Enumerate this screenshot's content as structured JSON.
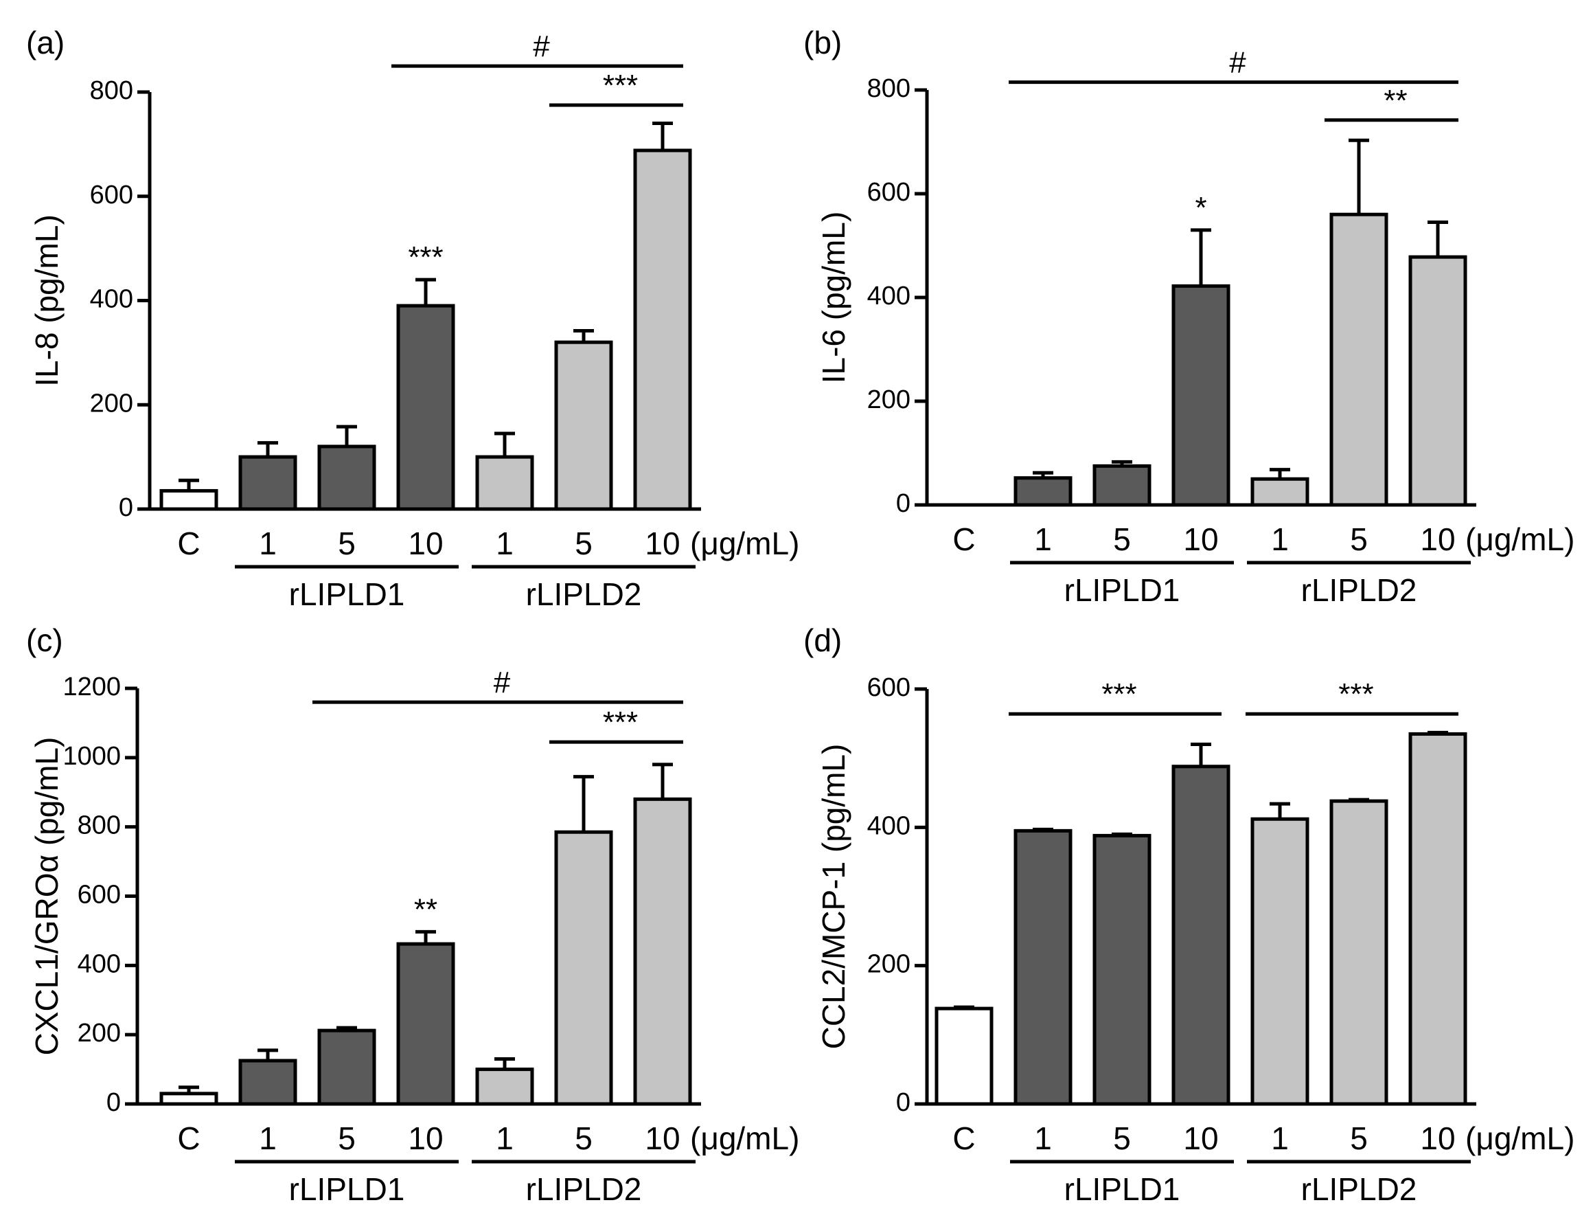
{
  "chart_data": [
    {
      "type": "bar",
      "panel_label": "(a)",
      "ylabel": "IL-8 (pg/mL)",
      "ylim": [
        0,
        800
      ],
      "yticks": [
        0,
        200,
        400,
        600,
        800
      ],
      "categories": [
        "C",
        "1",
        "5",
        "10",
        "1",
        "5",
        "10"
      ],
      "unit_label": "(μg/mL)",
      "group_labels": [
        "rLIPLD1",
        "rLIPLD2"
      ],
      "values": [
        35,
        100,
        120,
        390,
        100,
        320,
        688
      ],
      "errors": [
        20,
        27,
        38,
        50,
        45,
        22,
        52
      ],
      "fills": [
        "#ffffff",
        "#5a5a5a",
        "#5a5a5a",
        "#5a5a5a",
        "#c4c4c4",
        "#c4c4c4",
        "#c4c4c4"
      ],
      "bar_stars": [
        {
          "index": 3,
          "text": "***"
        }
      ],
      "brackets": [
        {
          "from": 3,
          "to": 6,
          "value": 850,
          "text": "#"
        },
        {
          "from": 5,
          "to": 6,
          "value": 775,
          "text": "***"
        }
      ]
    },
    {
      "type": "bar",
      "panel_label": "(b)",
      "ylabel": "IL-6 (pg/mL)",
      "ylim": [
        0,
        800
      ],
      "yticks": [
        0,
        200,
        400,
        600,
        800
      ],
      "categories": [
        "C",
        "1",
        "5",
        "10",
        "1",
        "5",
        "10"
      ],
      "unit_label": "(μg/mL)",
      "group_labels": [
        "rLIPLD1",
        "rLIPLD2"
      ],
      "values": [
        0,
        52,
        75,
        422,
        50,
        560,
        478
      ],
      "errors": [
        0,
        10,
        8,
        108,
        18,
        143,
        67
      ],
      "fills": [
        "#ffffff",
        "#5a5a5a",
        "#5a5a5a",
        "#5a5a5a",
        "#c4c4c4",
        "#c4c4c4",
        "#c4c4c4"
      ],
      "bar_stars": [
        {
          "index": 3,
          "text": "*"
        }
      ],
      "brackets": [
        {
          "from": 1,
          "to": 6,
          "value": 815,
          "text": "#"
        },
        {
          "from": 5,
          "to": 6,
          "value": 742,
          "text": "**"
        }
      ]
    },
    {
      "type": "bar",
      "panel_label": "(c)",
      "ylabel": "CXCL1/GROα (pg/mL)",
      "ylim": [
        0,
        1200
      ],
      "yticks": [
        0,
        200,
        400,
        600,
        800,
        1000,
        1200
      ],
      "categories": [
        "C",
        "1",
        "5",
        "10",
        "1",
        "5",
        "10"
      ],
      "unit_label": "(μg/mL)",
      "group_labels": [
        "rLIPLD1",
        "rLIPLD2"
      ],
      "values": [
        30,
        125,
        212,
        462,
        100,
        785,
        880
      ],
      "errors": [
        18,
        30,
        8,
        35,
        30,
        160,
        100
      ],
      "fills": [
        "#ffffff",
        "#5a5a5a",
        "#5a5a5a",
        "#5a5a5a",
        "#c4c4c4",
        "#c4c4c4",
        "#c4c4c4"
      ],
      "bar_stars": [
        {
          "index": 3,
          "text": "**"
        }
      ],
      "brackets": [
        {
          "from": 2,
          "to": 6,
          "value": 1160,
          "text": "#"
        },
        {
          "from": 5,
          "to": 6,
          "value": 1045,
          "text": "***"
        }
      ]
    },
    {
      "type": "bar",
      "panel_label": "(d)",
      "ylabel": "CCL2/MCP-1 (pg/mL)",
      "ylim": [
        0,
        600
      ],
      "yticks": [
        0,
        200,
        400,
        600
      ],
      "categories": [
        "C",
        "1",
        "5",
        "10",
        "1",
        "5",
        "10"
      ],
      "unit_label": "(μg/mL)",
      "group_labels": [
        "rLIPLD1",
        "rLIPLD2"
      ],
      "values": [
        138,
        395,
        388,
        488,
        412,
        438,
        535
      ],
      "errors": [
        2,
        2,
        2,
        32,
        22,
        2,
        2
      ],
      "fills": [
        "#ffffff",
        "#5a5a5a",
        "#5a5a5a",
        "#5a5a5a",
        "#c4c4c4",
        "#c4c4c4",
        "#c4c4c4"
      ],
      "bar_stars": [],
      "brackets": [
        {
          "from": 1,
          "to": 3,
          "value": 564,
          "text": "***"
        },
        {
          "from": 4,
          "to": 6,
          "value": 564,
          "text": "***"
        }
      ]
    }
  ]
}
